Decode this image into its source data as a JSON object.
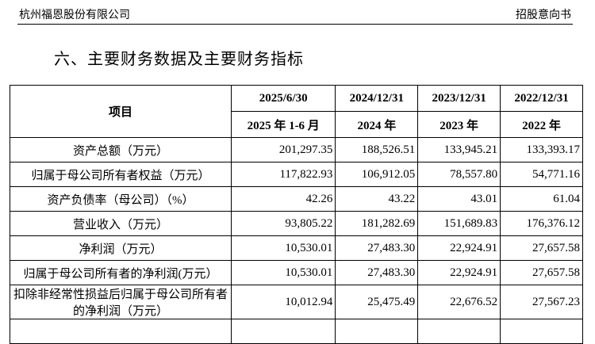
{
  "header": {
    "company": "杭州福恩股份有限公司",
    "doc_type": "招股意向书"
  },
  "section_title": "六、主要财务数据及主要财务指标",
  "table": {
    "item_header": "项目",
    "dates": [
      "2025/6/30",
      "2024/12/31",
      "2023/12/31",
      "2022/12/31"
    ],
    "periods": [
      "2025 年 1-6 月",
      "2024 年",
      "2023 年",
      "2022 年"
    ],
    "rows": [
      {
        "label": "资产总额（万元）",
        "values": [
          "201,297.35",
          "188,526.51",
          "133,945.21",
          "133,393.17"
        ]
      },
      {
        "label": "归属于母公司所有者权益（万元）",
        "values": [
          "117,822.93",
          "106,912.05",
          "78,557.80",
          "54,771.16"
        ]
      },
      {
        "label": "资产负债率（母公司）（%）",
        "values": [
          "42.26",
          "43.22",
          "43.01",
          "61.04"
        ]
      },
      {
        "label": "营业收入（万元）",
        "values": [
          "93,805.22",
          "181,282.69",
          "151,689.83",
          "176,376.12"
        ]
      },
      {
        "label": "净利润（万元）",
        "values": [
          "10,530.01",
          "27,483.30",
          "22,924.91",
          "27,657.58"
        ]
      },
      {
        "label": "归属于母公司所有者的净利润(万元）",
        "values": [
          "10,530.01",
          "27,483.30",
          "22,924.91",
          "27,657.58"
        ]
      },
      {
        "label": "扣除非经常性损益后归属于母公司所有者的净利润（万元）",
        "values": [
          "10,012.94",
          "25,475.49",
          "22,676.52",
          "27,567.23"
        ]
      }
    ]
  }
}
